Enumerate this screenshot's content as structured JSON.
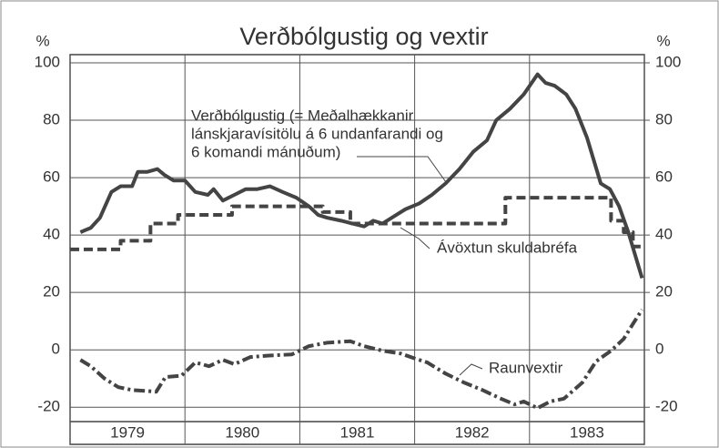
{
  "chart_data": {
    "type": "line",
    "title": "Verðbólgustig og vextir",
    "y_unit_left": "%",
    "y_unit_right": "%",
    "categories": [
      "1979",
      "1980",
      "1981",
      "1982",
      "1983"
    ],
    "xlim": [
      1979,
      1984
    ],
    "xticks": [
      1979,
      1980,
      1981,
      1982,
      1983,
      1984
    ],
    "ylim": [
      -25,
      100
    ],
    "yticks": [
      -20,
      0,
      20,
      40,
      60,
      80,
      100
    ],
    "y2lim": [
      -25,
      100
    ],
    "y2ticks": [
      -20,
      0,
      20,
      40,
      60,
      80,
      100
    ],
    "grid": true,
    "series": [
      {
        "color": "#444",
        "style": "solid",
        "x": [
          1979.09,
          1979.18,
          1979.26,
          1979.36,
          1979.44,
          1979.54,
          1979.59,
          1979.67,
          1979.76,
          1979.82,
          1979.9,
          1980.0,
          1980.09,
          1980.2,
          1980.25,
          1980.33,
          1980.43,
          1980.53,
          1980.63,
          1980.74,
          1980.85,
          1980.97,
          1981.08,
          1981.16,
          1981.24,
          1981.36,
          1981.46,
          1981.56,
          1981.64,
          1981.72,
          1981.8,
          1981.92,
          1982.04,
          1982.15,
          1982.27,
          1982.39,
          1982.51,
          1982.63,
          1982.71,
          1982.83,
          1982.95,
          1983.07,
          1983.14,
          1983.22,
          1983.32,
          1983.4,
          1983.5,
          1983.62,
          1983.7,
          1983.78,
          1983.86,
          1983.92,
          1983.98
        ],
        "values": [
          41,
          42.5,
          46,
          55,
          57,
          57,
          62,
          62,
          63,
          61,
          59,
          59,
          55,
          54,
          56,
          52,
          54,
          56,
          56,
          57,
          55,
          53,
          50,
          47,
          46,
          45,
          44,
          43,
          45,
          44,
          46,
          49,
          51,
          54,
          58,
          63,
          69,
          73,
          80,
          84,
          89,
          96,
          93,
          92,
          89,
          84,
          74,
          58,
          56,
          50,
          41,
          33,
          25
        ]
      },
      {
        "color": "#444",
        "style": "dashed",
        "step": true,
        "x": [
          1979.0,
          1979.44,
          1979.7,
          1979.94,
          1980.41,
          1981.2,
          1981.44,
          1982.79,
          1983.71,
          1983.82,
          1983.9
        ],
        "values": [
          35,
          38,
          44,
          47,
          50,
          48,
          44,
          53,
          45,
          41,
          36
        ]
      },
      {
        "color": "#444",
        "style": "dashdot",
        "x": [
          1979.09,
          1979.18,
          1979.3,
          1979.42,
          1979.54,
          1979.66,
          1979.75,
          1979.83,
          1979.97,
          1980.09,
          1980.21,
          1980.33,
          1980.43,
          1980.57,
          1980.73,
          1980.93,
          1981.08,
          1981.24,
          1981.44,
          1981.56,
          1981.72,
          1981.88,
          1982.0,
          1982.11,
          1982.27,
          1982.43,
          1982.59,
          1982.75,
          1982.87,
          1982.95,
          1983.07,
          1983.18,
          1983.3,
          1983.46,
          1983.58,
          1983.71,
          1983.82,
          1983.9,
          1983.98
        ],
        "values": [
          -3.5,
          -5.7,
          -10,
          -13,
          -14,
          -14.3,
          -14.6,
          -9.5,
          -9,
          -4.4,
          -5.7,
          -3.5,
          -5,
          -2.5,
          -2,
          -1.6,
          1.3,
          2.5,
          3,
          1.3,
          -0.3,
          -1.3,
          -3,
          -4.4,
          -8.3,
          -11.4,
          -14,
          -17,
          -19,
          -18,
          -20.3,
          -18,
          -17,
          -11.4,
          -4,
          -0.3,
          3.8,
          9,
          14
        ]
      }
    ],
    "annotations": [
      {
        "series": 0,
        "lines": [
          "Verðbólgustig (= Meðalhækkanir",
          "lánskjaravísitölu á 6 undanfarandi og",
          "6 komandi mánuðum)"
        ]
      },
      {
        "series": 1,
        "lines": [
          "Ávöxtun skuldabréfa"
        ]
      },
      {
        "series": 2,
        "lines": [
          "Raunvextir"
        ]
      }
    ]
  }
}
